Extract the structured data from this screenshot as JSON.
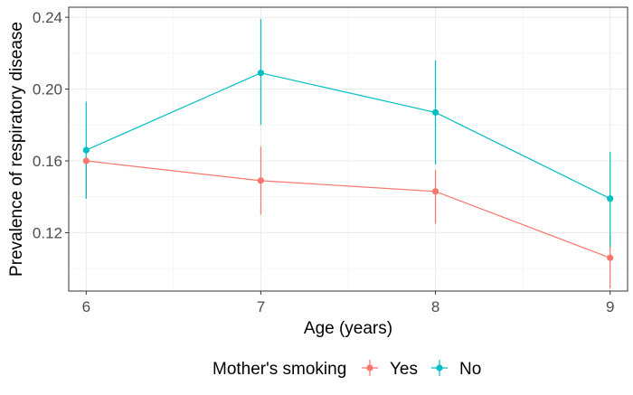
{
  "chart_data": {
    "type": "line",
    "xlabel": "Age (years)",
    "ylabel": "Prevalence of respiratory disease",
    "x": [
      6,
      7,
      8,
      9
    ],
    "x_ticks": [
      "6",
      "7",
      "8",
      "9"
    ],
    "xlim": [
      5.9,
      9.1
    ],
    "ylim": [
      0.0875,
      0.2456
    ],
    "y_ticks": [
      "0.12",
      "0.16",
      "0.20",
      "0.24"
    ],
    "grid": true,
    "legend_position": "bottom",
    "legend_title": "Mother's smoking",
    "series": [
      {
        "name": "Yes",
        "color": "#F8766D",
        "values": [
          0.16,
          0.149,
          0.143,
          0.106
        ],
        "lower": [
          0.139,
          0.13,
          0.125,
          0.089
        ],
        "upper": [
          0.161,
          0.168,
          0.155,
          0.119
        ]
      },
      {
        "name": "No",
        "color": "#00BFC4",
        "values": [
          0.166,
          0.209,
          0.187,
          0.139
        ],
        "lower": [
          0.139,
          0.18,
          0.158,
          0.112
        ],
        "upper": [
          0.193,
          0.239,
          0.216,
          0.165
        ]
      }
    ]
  }
}
